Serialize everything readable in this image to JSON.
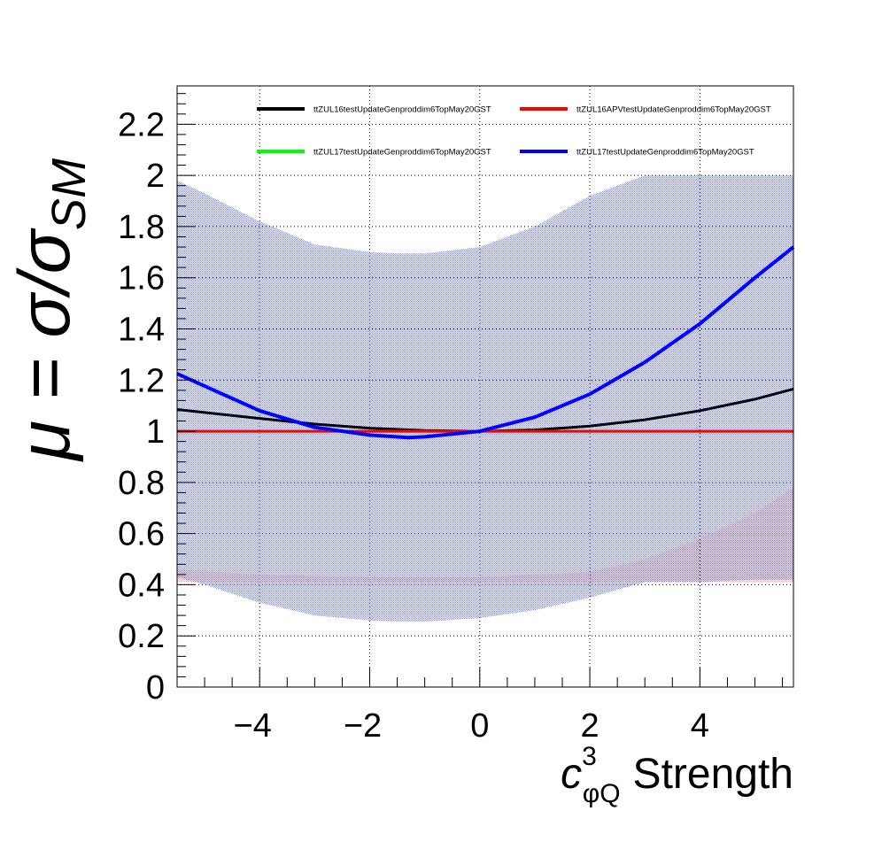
{
  "chart_data": {
    "type": "line",
    "xlabel": {
      "symbol": "c",
      "superscript": "3",
      "subscript": "φQ",
      "text": "Strength"
    },
    "ylabel": {
      "prefix": "μ = σ/σ",
      "subscript": "SM"
    },
    "xlim": [
      -5.5,
      5.7
    ],
    "ylim": [
      0,
      2.35
    ],
    "x_ticks": [
      -4,
      -2,
      0,
      2,
      4
    ],
    "x_tick_labels": [
      "−4",
      "−2",
      "0",
      "2",
      "4"
    ],
    "y_ticks": [
      0,
      0.2,
      0.4,
      0.6,
      0.8,
      1,
      1.2,
      1.4,
      1.6,
      1.8,
      2,
      2.2
    ],
    "y_tick_labels": [
      "0",
      "0.2",
      "0.4",
      "0.6",
      "0.8",
      "1",
      "1.2",
      "1.4",
      "1.6",
      "1.8",
      "2",
      "2.2"
    ],
    "grid": true,
    "legend_position": "top",
    "series": [
      {
        "name": "ttZUL16testUpdateGenproddim6TopMay20GST",
        "color": "#000000",
        "x": [
          -5.5,
          -4,
          -3,
          -2,
          -1,
          0,
          1,
          2,
          3,
          4,
          5,
          5.7
        ],
        "y": [
          1.085,
          1.05,
          1.028,
          1.012,
          1.003,
          1.0,
          1.005,
          1.02,
          1.045,
          1.08,
          1.125,
          1.165
        ]
      },
      {
        "name": "ttZUL16APVtestUpdateGenproddim6TopMay20GST",
        "color": "#ff0000",
        "x": [
          -5.5,
          5.7
        ],
        "y": [
          1.0,
          1.0
        ]
      },
      {
        "name": "ttZUL17testUpdateGenproddim6TopMay20GST",
        "color": "#00ff00",
        "x": [
          -5.5,
          5.7
        ],
        "y": [
          1.0,
          1.0
        ]
      },
      {
        "name": "ttZUL17testUpdateGenproddim6TopMay20GST",
        "color": "#0000ff",
        "x": [
          -5.5,
          -4,
          -3,
          -2,
          -1.3,
          -1,
          0,
          1,
          2,
          3,
          4,
          5,
          5.7
        ],
        "y": [
          1.225,
          1.08,
          1.015,
          0.985,
          0.975,
          0.978,
          1.0,
          1.055,
          1.145,
          1.27,
          1.42,
          1.6,
          1.72
        ]
      }
    ],
    "bands": [
      {
        "color": "#ff9999",
        "x": [
          -5.5,
          -4,
          -2,
          0,
          2,
          3,
          4,
          5,
          5.7
        ],
        "lower": [
          0.41,
          0.41,
          0.41,
          0.41,
          0.41,
          0.41,
          0.41,
          0.41,
          0.41
        ],
        "upper": [
          0.46,
          0.44,
          0.43,
          0.43,
          0.45,
          0.5,
          0.58,
          0.68,
          0.78
        ]
      },
      {
        "color": "#2030d0",
        "x": [
          -5.5,
          -5,
          -4,
          -3,
          -2,
          -1.5,
          -1,
          0,
          1,
          2,
          3,
          4,
          5,
          5.7
        ],
        "lower": [
          0.43,
          0.4,
          0.33,
          0.28,
          0.26,
          0.255,
          0.255,
          0.27,
          0.3,
          0.35,
          0.41,
          0.41,
          0.42,
          0.42
        ],
        "upper": [
          1.98,
          1.93,
          1.82,
          1.73,
          1.7,
          1.695,
          1.695,
          1.72,
          1.8,
          1.92,
          2.0,
          2.0,
          2.0,
          2.0
        ]
      }
    ]
  }
}
